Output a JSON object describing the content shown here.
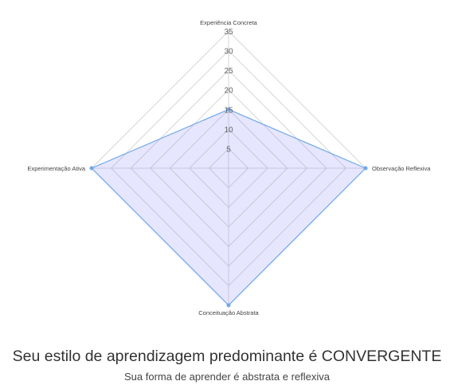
{
  "chart_data": {
    "type": "radar",
    "axes": [
      "Experiência Concreta",
      "Observação Reflexiva",
      "Conceituação Abstrata",
      "Experimentação Ativa"
    ],
    "series": [
      {
        "values": [
          15,
          35,
          35,
          35
        ]
      }
    ],
    "rlim": [
      0,
      35
    ],
    "ticks": [
      5,
      10,
      15,
      20,
      25,
      30,
      35
    ],
    "grid": true,
    "colors": {
      "fill": "rgba(130,130,255,0.2)",
      "line": "#6fa8e8",
      "grid": "#d6d6d6",
      "tick_text": "#666666",
      "label_text": "#444444"
    }
  },
  "result": {
    "title": "Seu estilo de aprendizagem predominante é CONVERGENTE",
    "subtitle": "Sua forma de aprender é abstrata e reflexiva"
  }
}
